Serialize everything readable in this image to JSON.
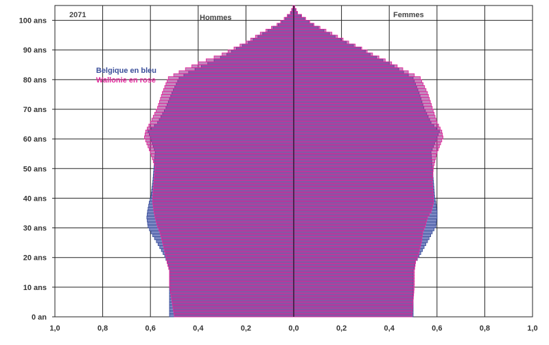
{
  "chart_data": {
    "type": "population-pyramid",
    "year_label": "2071",
    "left_label": "Hommes",
    "right_label": "Femmes",
    "legend": [
      {
        "name": "Belgique en bleu",
        "color": "#3a4e9a"
      },
      {
        "name": "Wallonie en rose",
        "color": "#e0289a"
      }
    ],
    "y_ticks": [
      "0 an",
      "10 ans",
      "20 ans",
      "30 ans",
      "40 ans",
      "50 ans",
      "60 ans",
      "70 ans",
      "80 ans",
      "90 ans",
      "100 ans"
    ],
    "x_ticks": [
      "1,0",
      "0,8",
      "0,6",
      "0,4",
      "0,2",
      "0,0",
      "0,2",
      "0,4",
      "0,6",
      "0,8",
      "1,0"
    ],
    "xlim": [
      -1.0,
      1.0
    ],
    "ylim": [
      0,
      105
    ],
    "age_step": 1,
    "series": [
      {
        "name": "Belgique",
        "color": "#3a4e9a",
        "keypoints_age": [
          0,
          5,
          10,
          15,
          18,
          20,
          25,
          28,
          30,
          33,
          35,
          38,
          40,
          45,
          50,
          55,
          60,
          62,
          65,
          70,
          75,
          80,
          82,
          85,
          88,
          90,
          92,
          95,
          98,
          100,
          102,
          104
        ],
        "men": [
          0.52,
          0.52,
          0.52,
          0.52,
          0.53,
          0.54,
          0.575,
          0.598,
          0.61,
          0.615,
          0.612,
          0.605,
          0.598,
          0.59,
          0.585,
          0.58,
          0.6,
          0.61,
          0.57,
          0.535,
          0.51,
          0.48,
          0.44,
          0.36,
          0.28,
          0.24,
          0.19,
          0.13,
          0.065,
          0.035,
          0.012,
          0.003
        ],
        "women": [
          0.5,
          0.5,
          0.5,
          0.5,
          0.51,
          0.525,
          0.56,
          0.58,
          0.595,
          0.6,
          0.6,
          0.595,
          0.59,
          0.585,
          0.58,
          0.575,
          0.6,
          0.61,
          0.575,
          0.545,
          0.525,
          0.5,
          0.46,
          0.4,
          0.32,
          0.28,
          0.22,
          0.15,
          0.08,
          0.045,
          0.015,
          0.004
        ]
      },
      {
        "name": "Wallonie",
        "color": "#e0289a",
        "keypoints_age": [
          0,
          5,
          10,
          15,
          18,
          20,
          25,
          28,
          30,
          33,
          35,
          38,
          40,
          45,
          50,
          55,
          60,
          62,
          65,
          70,
          75,
          80,
          82,
          85,
          88,
          90,
          92,
          95,
          98,
          100,
          102,
          104
        ],
        "men": [
          0.5,
          0.51,
          0.52,
          0.52,
          0.53,
          0.535,
          0.55,
          0.56,
          0.57,
          0.58,
          0.585,
          0.59,
          0.59,
          0.585,
          0.58,
          0.6,
          0.625,
          0.62,
          0.6,
          0.57,
          0.55,
          0.525,
          0.48,
          0.4,
          0.3,
          0.25,
          0.2,
          0.14,
          0.07,
          0.04,
          0.014,
          0.003
        ],
        "women": [
          0.495,
          0.5,
          0.505,
          0.505,
          0.51,
          0.52,
          0.535,
          0.54,
          0.55,
          0.56,
          0.575,
          0.585,
          0.585,
          0.58,
          0.585,
          0.6,
          0.625,
          0.62,
          0.6,
          0.58,
          0.56,
          0.53,
          0.48,
          0.41,
          0.33,
          0.285,
          0.23,
          0.16,
          0.085,
          0.05,
          0.016,
          0.004
        ]
      }
    ]
  }
}
